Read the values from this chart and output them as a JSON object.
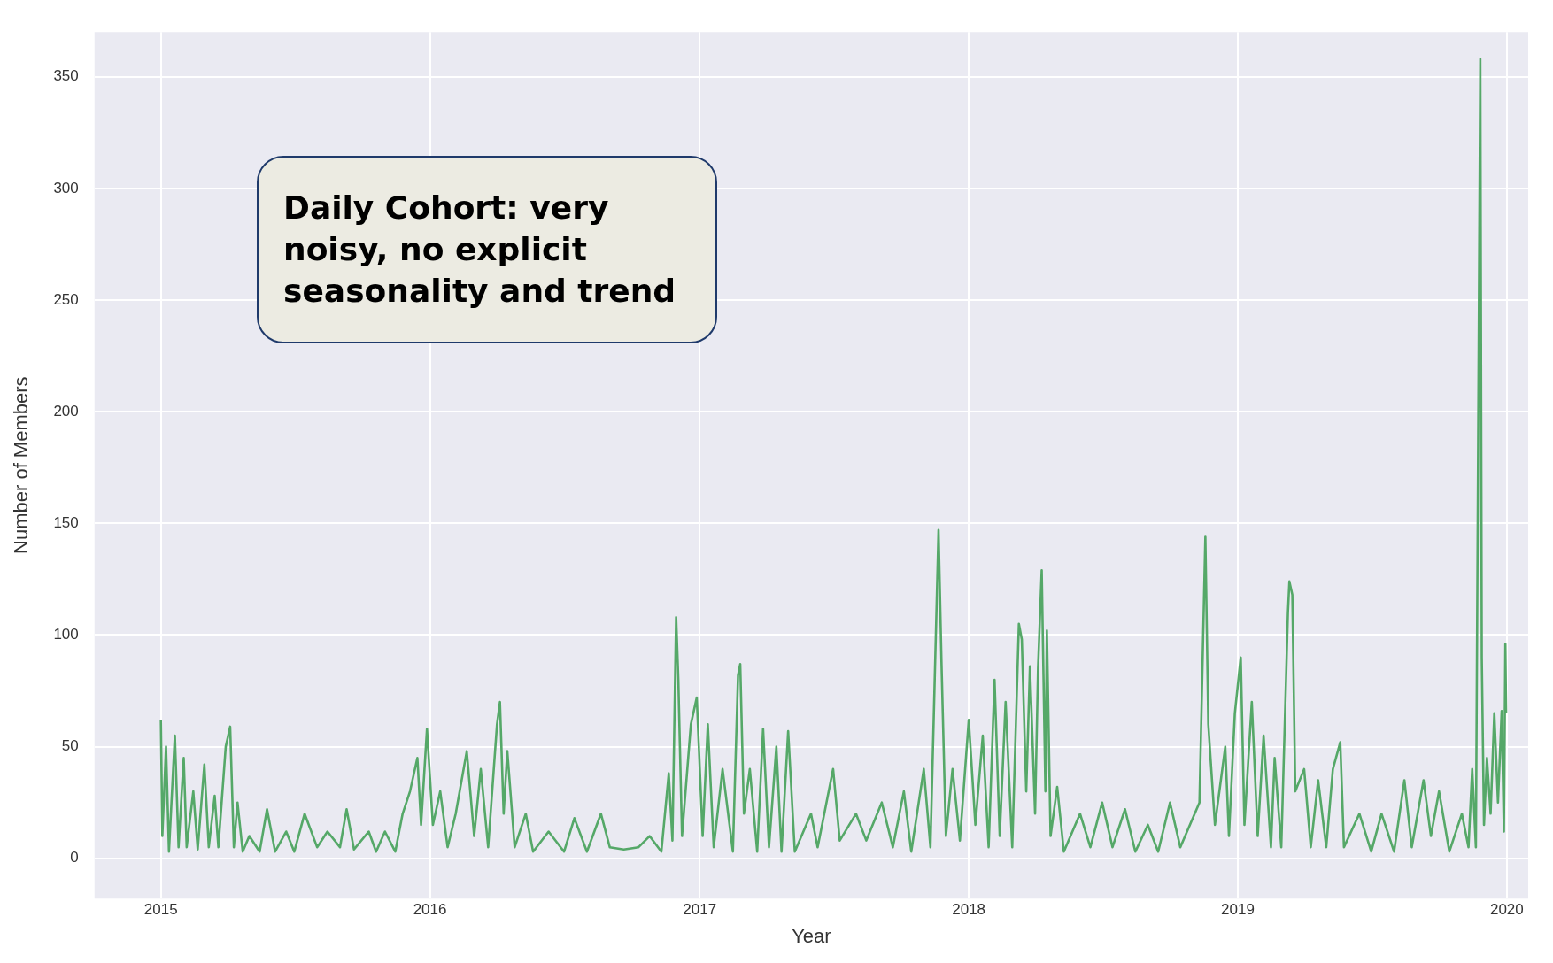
{
  "chart_data": {
    "type": "line",
    "xlabel": "Year",
    "ylabel": "Number of Members",
    "annotations": [
      "Daily Cohort: very noisy, no explicit seasonality and trend"
    ],
    "x": [
      "2015-01-01",
      "2015-01-03",
      "2015-01-08",
      "2015-01-12",
      "2015-01-20",
      "2015-01-25",
      "2015-02-01",
      "2015-02-05",
      "2015-02-14",
      "2015-02-20",
      "2015-03-01",
      "2015-03-07",
      "2015-03-15",
      "2015-03-20",
      "2015-03-30",
      "2015-04-05",
      "2015-04-10",
      "2015-04-15",
      "2015-04-22",
      "2015-05-01",
      "2015-05-15",
      "2015-05-25",
      "2015-06-05",
      "2015-06-20",
      "2015-07-01",
      "2015-07-15",
      "2015-08-01",
      "2015-08-15",
      "2015-09-01",
      "2015-09-10",
      "2015-09-20",
      "2015-10-10",
      "2015-10-20",
      "2015-11-01",
      "2015-11-15",
      "2015-11-25",
      "2015-12-05",
      "2015-12-15",
      "2015-12-20",
      "2015-12-28",
      "2016-01-05",
      "2016-01-15",
      "2016-01-25",
      "2016-02-05",
      "2016-02-20",
      "2016-03-01",
      "2016-03-10",
      "2016-03-20",
      "2016-04-01",
      "2016-04-05",
      "2016-04-10",
      "2016-04-15",
      "2016-04-25",
      "2016-05-10",
      "2016-05-20",
      "2016-06-10",
      "2016-07-01",
      "2016-07-15",
      "2016-08-01",
      "2016-08-20",
      "2016-09-01",
      "2016-09-20",
      "2016-10-10",
      "2016-10-25",
      "2016-11-10",
      "2016-11-20",
      "2016-11-25",
      "2016-11-30",
      "2016-12-03",
      "2016-12-08",
      "2016-12-20",
      "2016-12-28",
      "2017-01-05",
      "2017-01-12",
      "2017-01-20",
      "2017-02-01",
      "2017-02-15",
      "2017-02-22",
      "2017-02-25",
      "2017-03-02",
      "2017-03-10",
      "2017-03-20",
      "2017-03-28",
      "2017-04-05",
      "2017-04-15",
      "2017-04-22",
      "2017-05-01",
      "2017-05-10",
      "2017-06-01",
      "2017-06-10",
      "2017-07-01",
      "2017-07-10",
      "2017-08-01",
      "2017-08-15",
      "2017-09-05",
      "2017-09-20",
      "2017-10-05",
      "2017-10-15",
      "2017-11-01",
      "2017-11-10",
      "2017-11-21",
      "2017-11-25",
      "2017-12-01",
      "2017-12-10",
      "2017-12-20",
      "2018-01-01",
      "2018-01-10",
      "2018-01-20",
      "2018-01-28",
      "2018-02-05",
      "2018-02-12",
      "2018-02-20",
      "2018-03-01",
      "2018-03-10",
      "2018-03-14",
      "2018-03-20",
      "2018-03-25",
      "2018-04-01",
      "2018-04-05",
      "2018-04-10",
      "2018-04-15",
      "2018-04-17",
      "2018-04-22",
      "2018-05-01",
      "2018-05-10",
      "2018-06-01",
      "2018-06-15",
      "2018-07-01",
      "2018-07-15",
      "2018-08-01",
      "2018-08-15",
      "2018-09-01",
      "2018-09-15",
      "2018-10-01",
      "2018-10-15",
      "2018-11-10",
      "2018-11-18",
      "2018-11-22",
      "2018-12-01",
      "2018-12-15",
      "2018-12-20",
      "2018-12-28",
      "2019-01-05",
      "2019-01-10",
      "2019-01-20",
      "2019-01-28",
      "2019-02-05",
      "2019-02-15",
      "2019-02-20",
      "2019-03-01",
      "2019-03-10",
      "2019-03-12",
      "2019-03-16",
      "2019-03-20",
      "2019-04-01",
      "2019-04-10",
      "2019-04-20",
      "2019-05-01",
      "2019-05-10",
      "2019-05-20",
      "2019-05-25",
      "2019-06-15",
      "2019-07-01",
      "2019-07-15",
      "2019-08-01",
      "2019-08-15",
      "2019-08-25",
      "2019-09-10",
      "2019-09-20",
      "2019-10-01",
      "2019-10-15",
      "2019-11-01",
      "2019-11-10",
      "2019-11-15",
      "2019-11-20",
      "2019-11-26",
      "2019-11-28",
      "2019-12-01",
      "2019-12-05",
      "2019-12-10",
      "2019-12-15",
      "2019-12-20",
      "2019-12-25",
      "2019-12-28",
      "2019-12-30",
      "2019-12-31"
    ],
    "series": [
      {
        "color": "#55a868",
        "values": [
          62,
          10,
          50,
          3,
          55,
          5,
          45,
          5,
          30,
          4,
          42,
          5,
          28,
          5,
          50,
          59,
          5,
          25,
          3,
          10,
          3,
          22,
          3,
          12,
          3,
          20,
          5,
          12,
          5,
          22,
          4,
          12,
          3,
          12,
          3,
          20,
          30,
          45,
          15,
          58,
          15,
          30,
          5,
          20,
          48,
          10,
          40,
          5,
          60,
          70,
          20,
          48,
          5,
          20,
          3,
          12,
          3,
          18,
          3,
          20,
          5,
          4,
          5,
          10,
          3,
          38,
          8,
          108,
          80,
          10,
          60,
          72,
          10,
          60,
          5,
          40,
          3,
          82,
          87,
          20,
          40,
          3,
          58,
          5,
          50,
          3,
          57,
          3,
          20,
          5,
          40,
          8,
          20,
          8,
          25,
          5,
          30,
          3,
          40,
          5,
          147,
          88,
          10,
          40,
          8,
          62,
          15,
          55,
          5,
          80,
          10,
          70,
          5,
          105,
          98,
          30,
          86,
          20,
          85,
          129,
          30,
          102,
          10,
          32,
          3,
          20,
          5,
          25,
          5,
          22,
          3,
          15,
          3,
          25,
          5,
          25,
          144,
          60,
          15,
          50,
          10,
          65,
          90,
          15,
          70,
          10,
          55,
          5,
          45,
          5,
          110,
          124,
          118,
          30,
          40,
          5,
          35,
          5,
          40,
          52,
          5,
          20,
          3,
          20,
          3,
          35,
          5,
          35,
          10,
          30,
          3,
          20,
          5,
          40,
          5,
          358,
          90,
          15,
          45,
          20,
          65,
          25,
          66,
          12,
          96,
          65
        ]
      }
    ],
    "xlim": [
      "2014-10-03",
      "2020-01-30"
    ],
    "xticks": [
      "2015",
      "2016",
      "2017",
      "2018",
      "2019",
      "2020"
    ],
    "ylim": [
      -18,
      370
    ],
    "yticks": [
      0,
      50,
      100,
      150,
      200,
      250,
      300,
      350
    ],
    "grid": true,
    "legend": false,
    "marker": "none",
    "line_style": "solid"
  }
}
